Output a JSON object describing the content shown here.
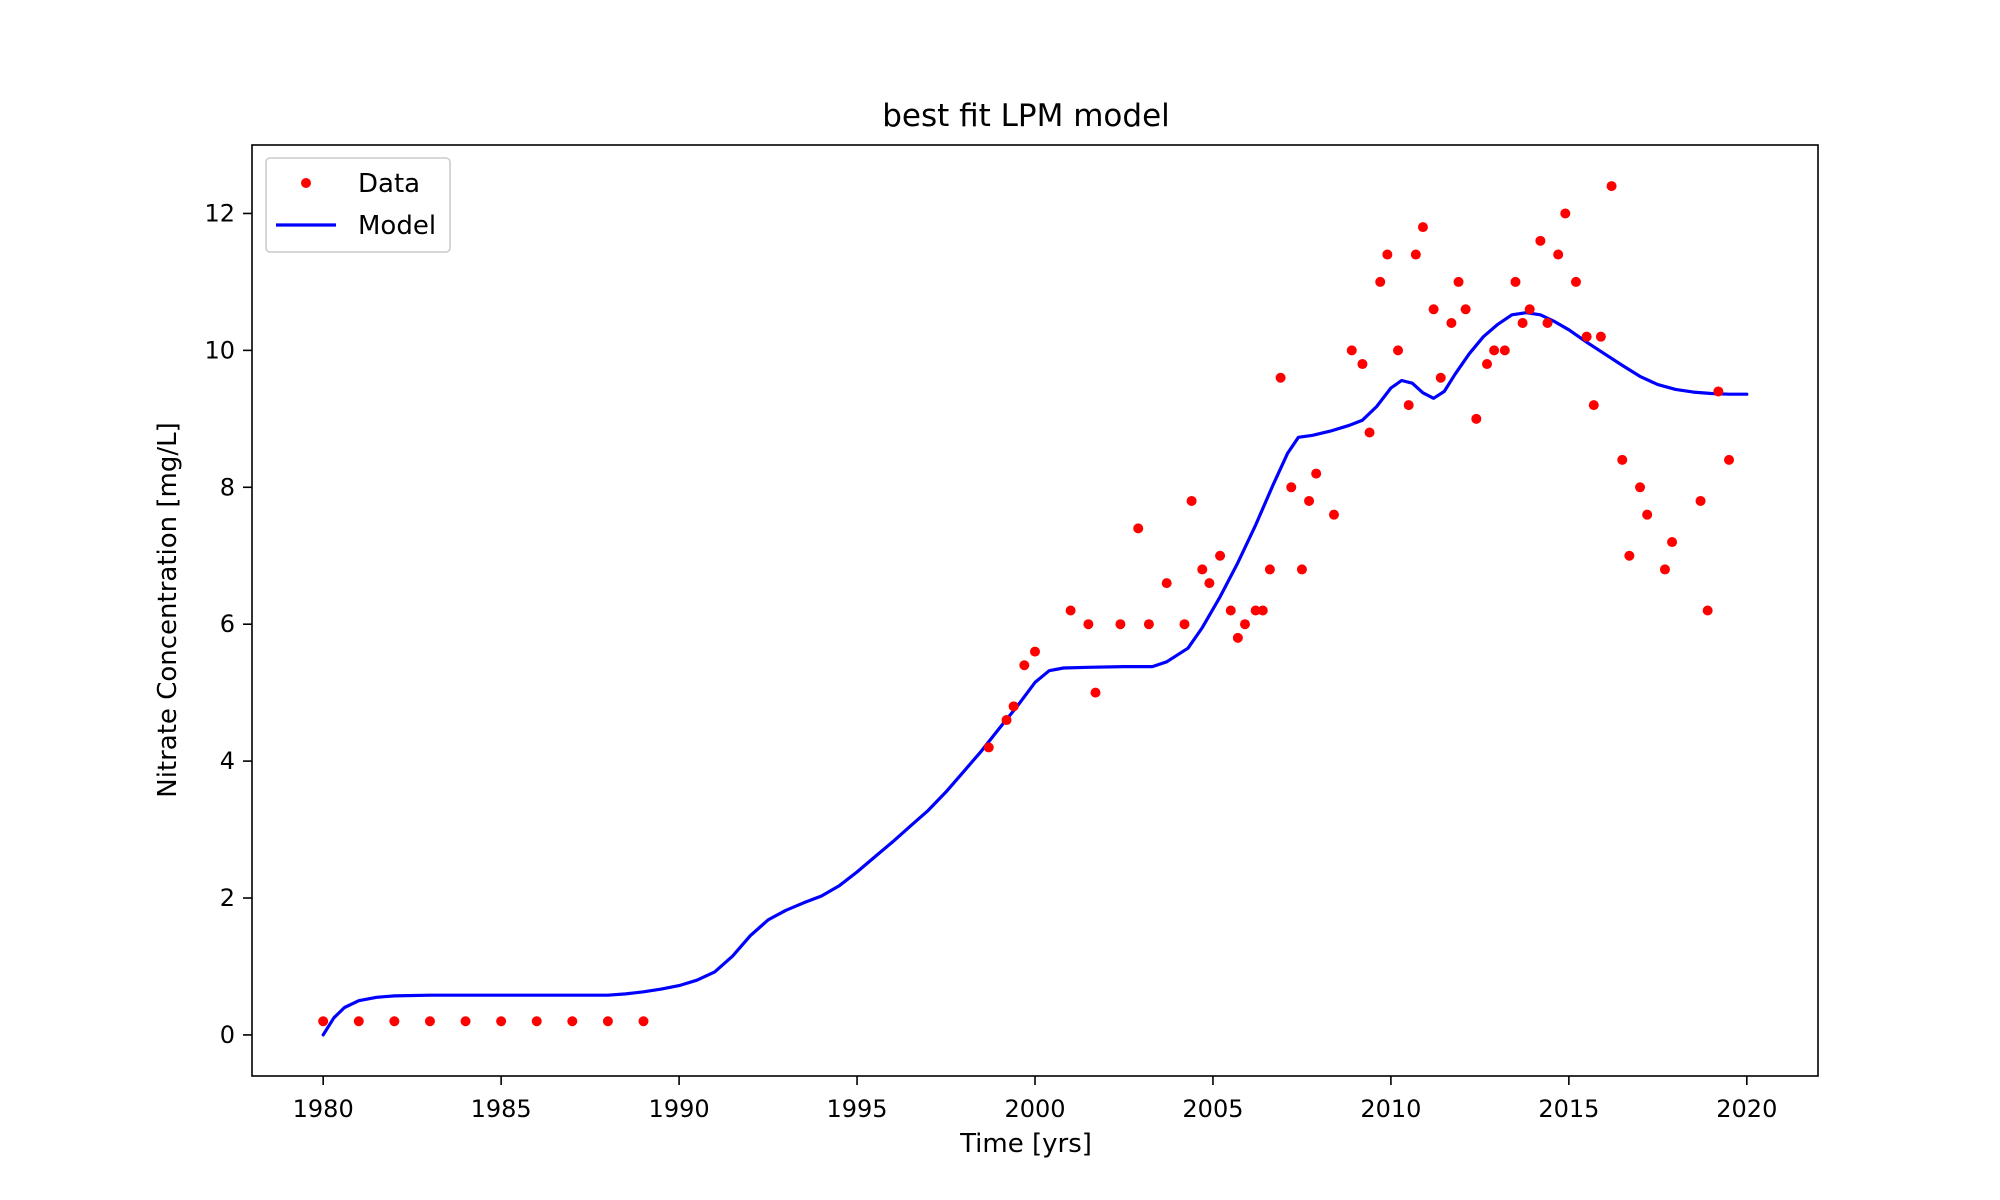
{
  "chart_data": {
    "type": "scatter",
    "title": "best fit LPM model",
    "xlabel": "Time [yrs]",
    "ylabel": "Nitrate Concentration [mg/L]",
    "xlim": [
      1978.0,
      2022.0
    ],
    "ylim": [
      -0.6,
      13.0
    ],
    "xticks": [
      1980,
      1985,
      1990,
      1995,
      2000,
      2005,
      2010,
      2015,
      2020
    ],
    "yticks": [
      0,
      2,
      4,
      6,
      8,
      10,
      12
    ],
    "grid": false,
    "legend": {
      "position": "upper-left",
      "entries": [
        {
          "name": "Data",
          "color": "#ff0000",
          "style": "dot"
        },
        {
          "name": "Model",
          "color": "#0000ff",
          "style": "line"
        }
      ]
    },
    "series": [
      {
        "name": "Data",
        "kind": "scatter",
        "color": "#ff0000",
        "points": [
          [
            1980.0,
            0.2
          ],
          [
            1981.0,
            0.2
          ],
          [
            1982.0,
            0.2
          ],
          [
            1983.0,
            0.2
          ],
          [
            1984.0,
            0.2
          ],
          [
            1985.0,
            0.2
          ],
          [
            1986.0,
            0.2
          ],
          [
            1987.0,
            0.2
          ],
          [
            1988.0,
            0.2
          ],
          [
            1989.0,
            0.2
          ],
          [
            1998.7,
            4.2
          ],
          [
            1999.2,
            4.6
          ],
          [
            1999.4,
            4.8
          ],
          [
            1999.7,
            5.4
          ],
          [
            2000.0,
            5.6
          ],
          [
            2001.0,
            6.2
          ],
          [
            2001.5,
            6.0
          ],
          [
            2001.7,
            5.0
          ],
          [
            2002.4,
            6.0
          ],
          [
            2002.9,
            7.4
          ],
          [
            2003.2,
            6.0
          ],
          [
            2003.7,
            6.6
          ],
          [
            2004.2,
            6.0
          ],
          [
            2004.4,
            7.8
          ],
          [
            2004.7,
            6.8
          ],
          [
            2004.9,
            6.6
          ],
          [
            2005.2,
            7.0
          ],
          [
            2005.5,
            6.2
          ],
          [
            2005.7,
            5.8
          ],
          [
            2005.9,
            6.0
          ],
          [
            2006.2,
            6.2
          ],
          [
            2006.4,
            6.2
          ],
          [
            2006.6,
            6.8
          ],
          [
            2006.9,
            9.6
          ],
          [
            2007.2,
            8.0
          ],
          [
            2007.5,
            6.8
          ],
          [
            2007.7,
            7.8
          ],
          [
            2007.9,
            8.2
          ],
          [
            2008.4,
            7.6
          ],
          [
            2008.9,
            10.0
          ],
          [
            2009.2,
            9.8
          ],
          [
            2009.4,
            8.8
          ],
          [
            2009.7,
            11.0
          ],
          [
            2009.9,
            11.4
          ],
          [
            2010.2,
            10.0
          ],
          [
            2010.5,
            9.2
          ],
          [
            2010.7,
            11.4
          ],
          [
            2010.9,
            11.8
          ],
          [
            2011.2,
            10.6
          ],
          [
            2011.4,
            9.6
          ],
          [
            2011.7,
            10.4
          ],
          [
            2011.9,
            11.0
          ],
          [
            2012.1,
            10.6
          ],
          [
            2012.4,
            9.0
          ],
          [
            2012.7,
            9.8
          ],
          [
            2012.9,
            10.0
          ],
          [
            2013.2,
            10.0
          ],
          [
            2013.5,
            11.0
          ],
          [
            2013.7,
            10.4
          ],
          [
            2013.9,
            10.6
          ],
          [
            2014.2,
            11.6
          ],
          [
            2014.4,
            10.4
          ],
          [
            2014.7,
            11.4
          ],
          [
            2014.9,
            12.0
          ],
          [
            2015.2,
            11.0
          ],
          [
            2015.5,
            10.2
          ],
          [
            2015.7,
            9.2
          ],
          [
            2015.9,
            10.2
          ],
          [
            2016.2,
            12.4
          ],
          [
            2016.5,
            8.4
          ],
          [
            2016.7,
            7.0
          ],
          [
            2017.0,
            8.0
          ],
          [
            2017.2,
            7.6
          ],
          [
            2017.7,
            6.8
          ],
          [
            2017.9,
            7.2
          ],
          [
            2018.7,
            7.8
          ],
          [
            2018.9,
            6.2
          ],
          [
            2019.2,
            9.4
          ],
          [
            2019.5,
            8.4
          ]
        ]
      },
      {
        "name": "Model",
        "kind": "line",
        "color": "#0000ff",
        "points": [
          [
            1980.0,
            0.0
          ],
          [
            1980.3,
            0.25
          ],
          [
            1980.6,
            0.4
          ],
          [
            1981.0,
            0.5
          ],
          [
            1981.5,
            0.55
          ],
          [
            1982.0,
            0.57
          ],
          [
            1983.0,
            0.58
          ],
          [
            1985.0,
            0.58
          ],
          [
            1987.0,
            0.58
          ],
          [
            1988.0,
            0.58
          ],
          [
            1988.5,
            0.6
          ],
          [
            1989.0,
            0.63
          ],
          [
            1989.5,
            0.67
          ],
          [
            1990.0,
            0.72
          ],
          [
            1990.5,
            0.8
          ],
          [
            1991.0,
            0.92
          ],
          [
            1991.5,
            1.15
          ],
          [
            1992.0,
            1.45
          ],
          [
            1992.5,
            1.68
          ],
          [
            1993.0,
            1.82
          ],
          [
            1993.5,
            1.93
          ],
          [
            1994.0,
            2.03
          ],
          [
            1994.5,
            2.18
          ],
          [
            1995.0,
            2.38
          ],
          [
            1995.5,
            2.6
          ],
          [
            1996.0,
            2.82
          ],
          [
            1996.5,
            3.05
          ],
          [
            1997.0,
            3.28
          ],
          [
            1997.5,
            3.55
          ],
          [
            1998.0,
            3.85
          ],
          [
            1998.5,
            4.15
          ],
          [
            1999.0,
            4.48
          ],
          [
            1999.5,
            4.8
          ],
          [
            2000.0,
            5.15
          ],
          [
            2000.4,
            5.32
          ],
          [
            2000.8,
            5.36
          ],
          [
            2001.5,
            5.37
          ],
          [
            2002.5,
            5.38
          ],
          [
            2003.3,
            5.38
          ],
          [
            2003.7,
            5.45
          ],
          [
            2004.3,
            5.65
          ],
          [
            2004.7,
            5.95
          ],
          [
            2005.2,
            6.4
          ],
          [
            2005.7,
            6.9
          ],
          [
            2006.2,
            7.45
          ],
          [
            2006.7,
            8.05
          ],
          [
            2007.1,
            8.5
          ],
          [
            2007.4,
            8.73
          ],
          [
            2007.8,
            8.76
          ],
          [
            2008.3,
            8.82
          ],
          [
            2008.8,
            8.9
          ],
          [
            2009.2,
            8.98
          ],
          [
            2009.6,
            9.18
          ],
          [
            2010.0,
            9.45
          ],
          [
            2010.3,
            9.56
          ],
          [
            2010.6,
            9.52
          ],
          [
            2010.9,
            9.38
          ],
          [
            2011.2,
            9.3
          ],
          [
            2011.5,
            9.4
          ],
          [
            2011.8,
            9.65
          ],
          [
            2012.2,
            9.95
          ],
          [
            2012.6,
            10.2
          ],
          [
            2013.0,
            10.38
          ],
          [
            2013.4,
            10.52
          ],
          [
            2013.8,
            10.55
          ],
          [
            2014.2,
            10.52
          ],
          [
            2014.6,
            10.42
          ],
          [
            2015.0,
            10.3
          ],
          [
            2015.5,
            10.12
          ],
          [
            2016.0,
            9.95
          ],
          [
            2016.5,
            9.78
          ],
          [
            2017.0,
            9.62
          ],
          [
            2017.5,
            9.5
          ],
          [
            2018.0,
            9.43
          ],
          [
            2018.5,
            9.39
          ],
          [
            2019.0,
            9.37
          ],
          [
            2019.5,
            9.36
          ],
          [
            2020.0,
            9.36
          ]
        ]
      }
    ]
  }
}
